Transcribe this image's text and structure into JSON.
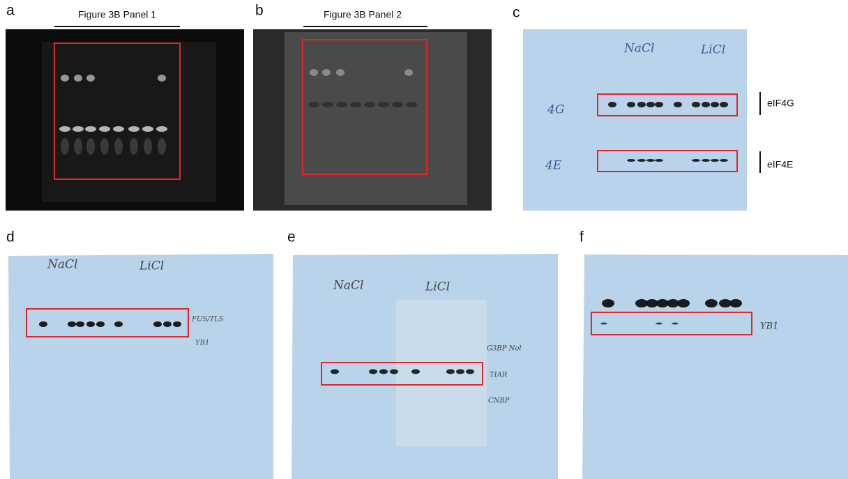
{
  "panels": [
    {
      "label": "a",
      "title": "Figure 3B Panel 1"
    },
    {
      "label": "b",
      "title": "Figure 3B Panel 2"
    },
    {
      "label": "c",
      "handwritten": [
        "NaCl",
        "LiCl",
        "4G",
        "4E"
      ],
      "bands": [
        "eIF4G",
        "eIF4E"
      ]
    },
    {
      "label": "d",
      "handwritten": [
        "NaCl",
        "LiCl",
        "FUS/TLS",
        "YB1"
      ]
    },
    {
      "label": "e",
      "handwritten": [
        "NaCl",
        "LiCl",
        "G3BP Nol",
        "TIAR",
        "CNBP"
      ]
    },
    {
      "label": "f",
      "handwritten": [
        "YB1"
      ]
    }
  ]
}
